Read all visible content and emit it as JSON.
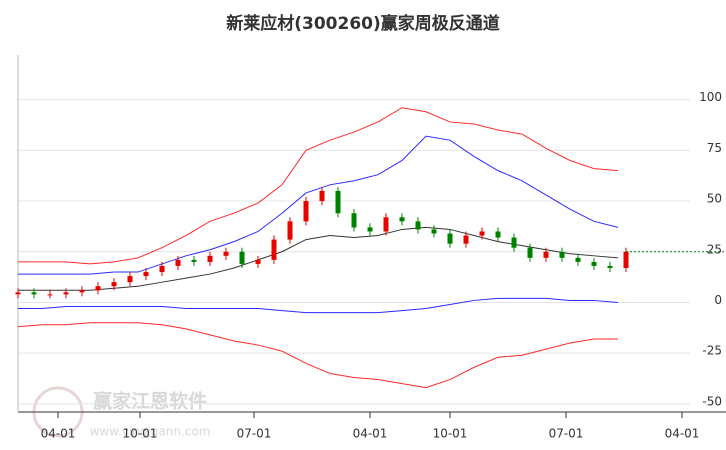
{
  "chart_data": {
    "type": "candlestick-channel",
    "title": "新莱应材(300260)赢家周极反通道",
    "watermark": "赢家江恩软件",
    "watermark_url": "www.yingjgann.com",
    "xlim": [
      0,
      177
    ],
    "ylim": [
      -54,
      122
    ],
    "yticks": [
      100,
      75,
      50,
      25,
      0,
      -25,
      -50
    ],
    "xticks": [
      {
        "value": 10,
        "label": "04-01"
      },
      {
        "value": 30.5,
        "label": "10-01"
      },
      {
        "value": 59,
        "label": "07-01"
      },
      {
        "value": 88,
        "label": "04-01"
      },
      {
        "value": 108,
        "label": "10-01"
      },
      {
        "value": 137,
        "label": "07-01"
      },
      {
        "value": 166,
        "label": "04-01"
      }
    ],
    "grid": true,
    "lines": {
      "x": [
        0,
        6,
        12,
        18,
        24,
        30,
        36,
        42,
        48,
        54,
        60,
        66,
        72,
        78,
        84,
        90,
        96,
        102,
        108,
        114,
        120,
        126,
        132,
        138,
        144,
        150
      ],
      "series": [
        {
          "color": "#ff2a2a",
          "values": [
            20,
            20,
            20,
            19,
            20,
            22,
            27,
            33,
            40,
            44,
            49,
            58,
            75,
            80,
            84,
            89,
            96,
            94,
            89,
            88,
            85,
            83,
            76,
            70,
            66,
            65
          ]
        },
        {
          "color": "#2a2aff",
          "values": [
            14,
            14,
            14,
            14,
            15,
            15,
            19,
            23,
            26,
            30,
            35,
            44,
            54,
            58,
            60,
            63,
            70,
            82,
            80,
            72,
            65,
            60,
            53,
            46,
            40,
            37
          ]
        },
        {
          "color": "#333333",
          "values": [
            6,
            6,
            6,
            6,
            7,
            8,
            10,
            12,
            14,
            17,
            21,
            25,
            31,
            33,
            32,
            33,
            36,
            37,
            36,
            33,
            30,
            28,
            26,
            24,
            23,
            22
          ]
        },
        {
          "color": "#2a2aff",
          "values": [
            -3,
            -3,
            -2,
            -2,
            -2,
            -2,
            -2,
            -3,
            -3,
            -3,
            -3,
            -4,
            -5,
            -5,
            -5,
            -5,
            -4,
            -3,
            -1,
            1,
            2,
            2,
            2,
            1,
            1,
            0
          ]
        },
        {
          "color": "#ff2a2a",
          "values": [
            -12,
            -11,
            -11,
            -10,
            -10,
            -10,
            -11,
            -13,
            -16,
            -19,
            -21,
            -24,
            -30,
            -35,
            -37,
            -38,
            -40,
            -42,
            -38,
            -32,
            -27,
            -26,
            -23,
            -20,
            -18,
            -18
          ]
        }
      ]
    },
    "candles": {
      "up_color": "#e60000",
      "down_color": "#008000",
      "x": [
        0,
        4,
        8,
        12,
        16,
        20,
        24,
        28,
        32,
        36,
        40,
        44,
        48,
        52,
        56,
        60,
        64,
        68,
        72,
        76,
        80,
        84,
        88,
        92,
        96,
        100,
        104,
        108,
        112,
        116,
        120,
        124,
        128,
        132,
        136,
        140,
        144,
        148,
        152
      ],
      "open": [
        4,
        5,
        4,
        4,
        5,
        6,
        8,
        10,
        13,
        15,
        18,
        21,
        20,
        23,
        25,
        19,
        21,
        31,
        40,
        50,
        55,
        44,
        37,
        35,
        42,
        40,
        36,
        34,
        29,
        33,
        35,
        32,
        27,
        22,
        25,
        22,
        20,
        18,
        17
      ],
      "high": [
        7,
        7,
        6,
        7,
        8,
        10,
        12,
        15,
        17,
        20,
        23,
        23,
        25,
        27,
        27,
        23,
        33,
        42,
        52,
        57,
        57,
        46,
        39,
        44,
        44,
        42,
        38,
        36,
        35,
        37,
        37,
        34,
        29,
        27,
        27,
        24,
        22,
        20,
        27
      ],
      "low": [
        2,
        2,
        2,
        2,
        3,
        4,
        6,
        8,
        11,
        13,
        16,
        18,
        18,
        21,
        17,
        17,
        19,
        29,
        38,
        48,
        42,
        35,
        33,
        33,
        38,
        34,
        32,
        27,
        27,
        31,
        30,
        25,
        20,
        20,
        20,
        18,
        16,
        15,
        15
      ],
      "close": [
        5,
        4,
        4,
        5,
        6,
        8,
        10,
        13,
        15,
        18,
        21,
        20,
        23,
        25,
        19,
        21,
        31,
        40,
        50,
        55,
        44,
        37,
        35,
        42,
        40,
        36,
        34,
        29,
        33,
        35,
        32,
        27,
        22,
        25,
        22,
        20,
        18,
        17,
        25
      ]
    }
  }
}
